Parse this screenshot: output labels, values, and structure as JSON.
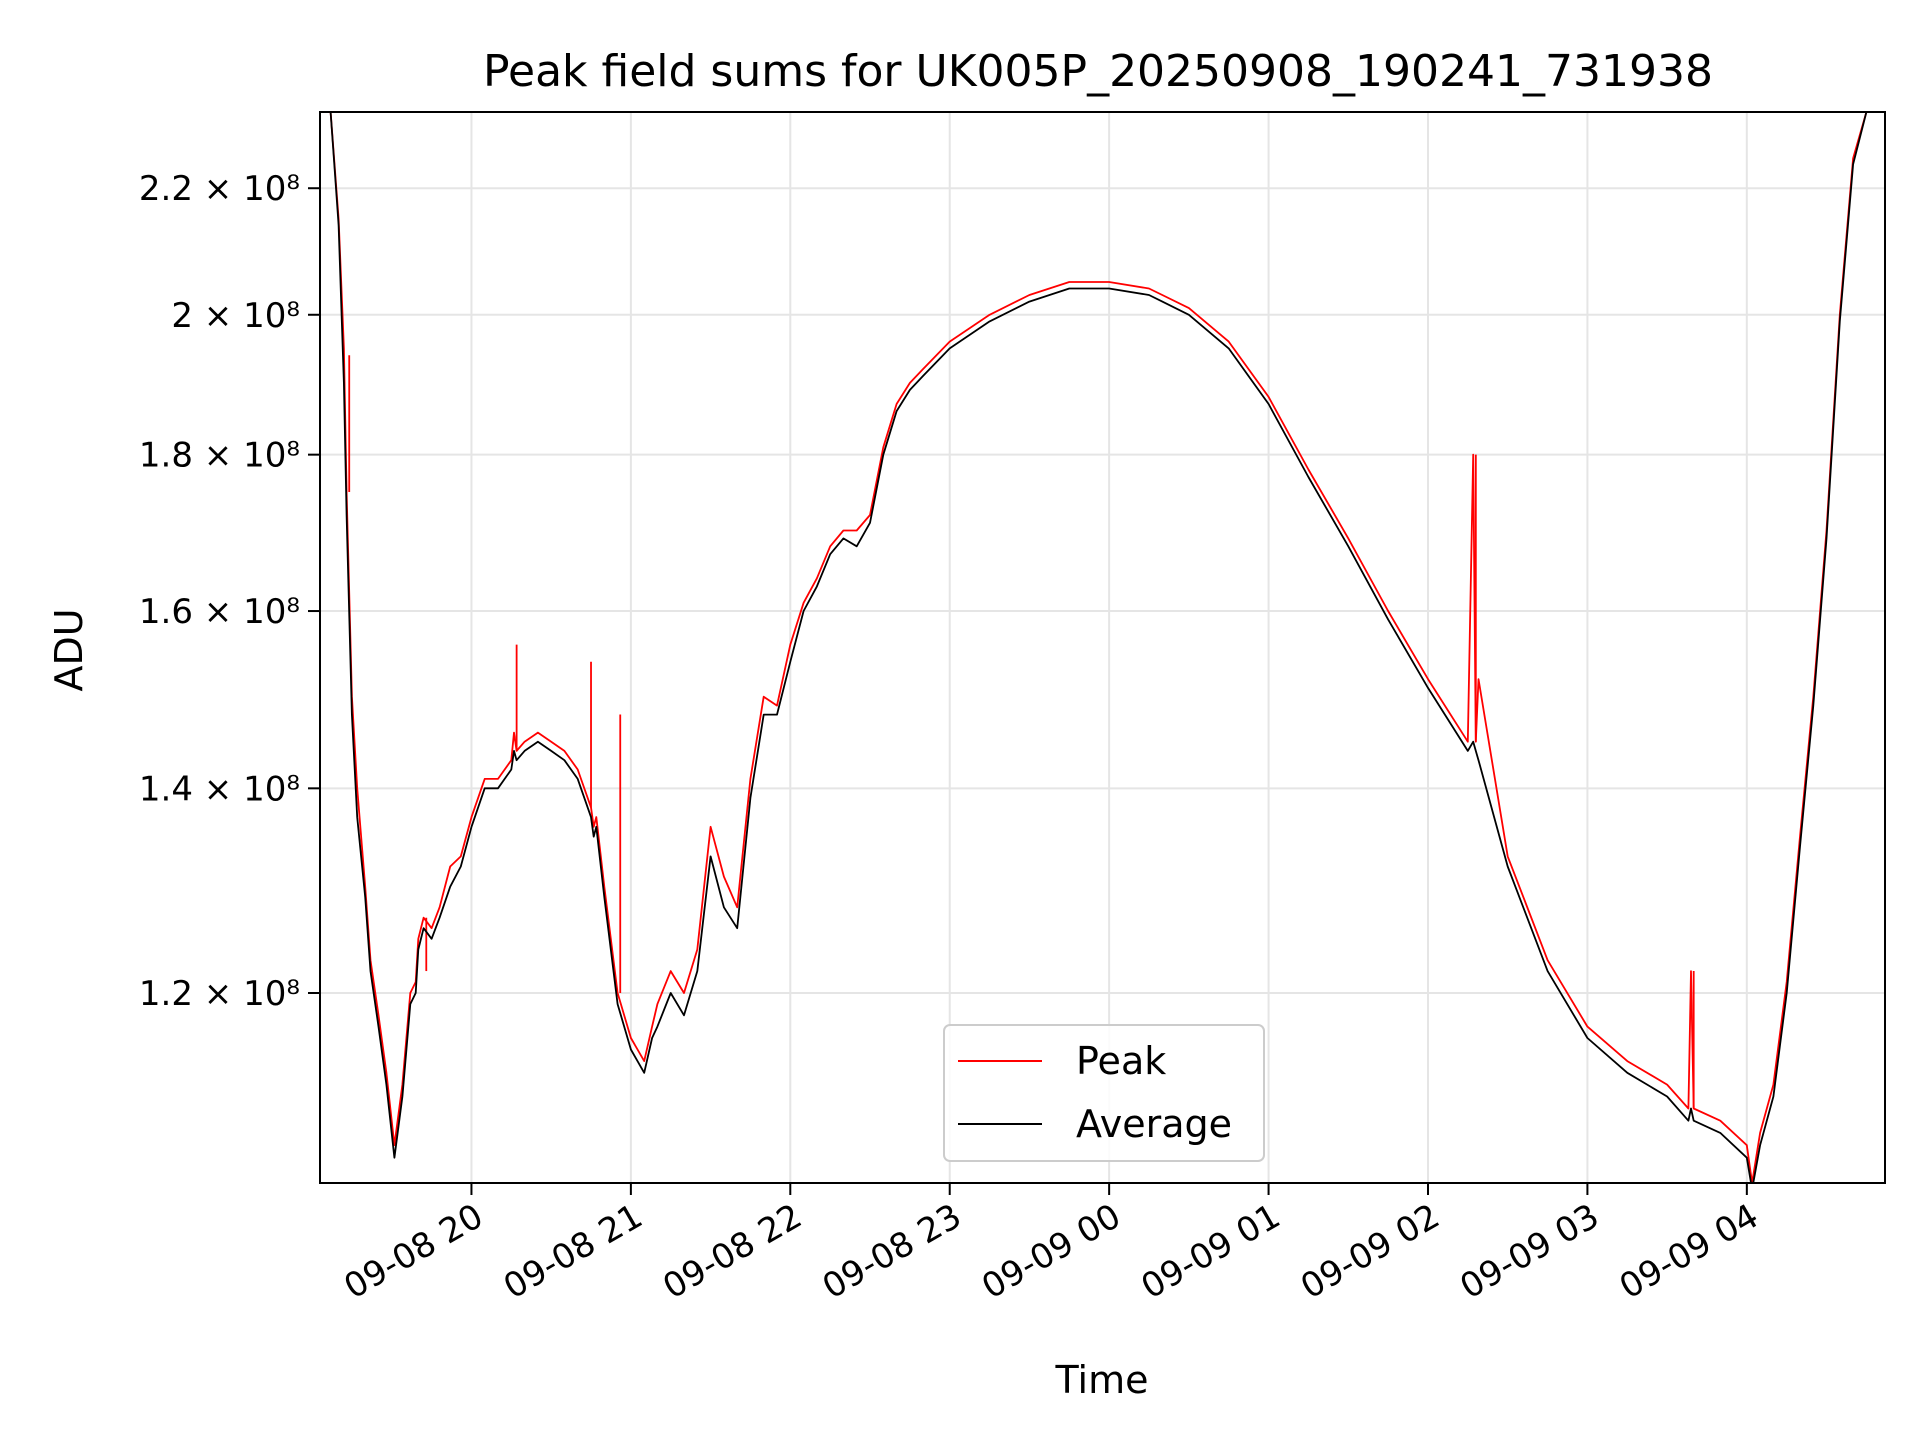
{
  "chart_data": {
    "type": "line",
    "title": "Peak field sums for UK005P_20250908_190241_731938",
    "xlabel": "Time",
    "ylabel": "ADU",
    "yscale": "log",
    "grid": true,
    "legend_position": "bottom-center",
    "xlim": [
      "2025-09-08 19:03",
      "2025-09-09 04:52"
    ],
    "ylim": [
      104000000,
      233000000
    ],
    "x_ticks": [
      "09-08 20",
      "09-08 21",
      "09-08 22",
      "09-08 23",
      "09-09 00",
      "09-09 01",
      "09-09 02",
      "09-09 03",
      "09-09 04"
    ],
    "x_tick_times": [
      "2025-09-08 20:00",
      "2025-09-08 21:00",
      "2025-09-08 22:00",
      "2025-09-08 23:00",
      "2025-09-09 00:00",
      "2025-09-09 01:00",
      "2025-09-09 02:00",
      "2025-09-09 03:00",
      "2025-09-09 04:00"
    ],
    "y_ticks": [
      {
        "value": 120000000,
        "label": "1.2 × 10⁸"
      },
      {
        "value": 140000000,
        "label": "1.4 × 10⁸"
      },
      {
        "value": 160000000,
        "label": "1.6 × 10⁸"
      },
      {
        "value": 180000000,
        "label": "1.8 × 10⁸"
      },
      {
        "value": 200000000,
        "label": "2 × 10⁸"
      },
      {
        "value": 220000000,
        "label": "2.2 × 10⁸"
      }
    ],
    "series": [
      {
        "name": "Peak",
        "color": "#ff0000",
        "x": [
          "2025-09-08 19:04",
          "2025-09-08 19:07",
          "2025-09-08 19:10",
          "2025-09-08 19:12",
          "2025-09-08 19:13",
          "2025-09-08 19:15",
          "2025-09-08 19:17",
          "2025-09-08 19:20",
          "2025-09-08 19:22",
          "2025-09-08 19:25",
          "2025-09-08 19:28",
          "2025-09-08 19:31",
          "2025-09-08 19:34",
          "2025-09-08 19:37",
          "2025-09-08 19:39",
          "2025-09-08 19:40",
          "2025-09-08 19:42",
          "2025-09-08 19:45",
          "2025-09-08 19:48",
          "2025-09-08 19:52",
          "2025-09-08 19:56",
          "2025-09-08 20:00",
          "2025-09-08 20:05",
          "2025-09-08 20:10",
          "2025-09-08 20:15",
          "2025-09-08 20:16",
          "2025-09-08 20:17",
          "2025-09-08 20:20",
          "2025-09-08 20:25",
          "2025-09-08 20:30",
          "2025-09-08 20:35",
          "2025-09-08 20:40",
          "2025-09-08 20:45",
          "2025-09-08 20:46",
          "2025-09-08 20:47",
          "2025-09-08 20:50",
          "2025-09-08 20:55",
          "2025-09-08 21:00",
          "2025-09-08 21:05",
          "2025-09-08 21:08",
          "2025-09-08 21:10",
          "2025-09-08 21:15",
          "2025-09-08 21:20",
          "2025-09-08 21:25",
          "2025-09-08 21:30",
          "2025-09-08 21:35",
          "2025-09-08 21:40",
          "2025-09-08 21:45",
          "2025-09-08 21:50",
          "2025-09-08 21:55",
          "2025-09-08 22:00",
          "2025-09-08 22:05",
          "2025-09-08 22:10",
          "2025-09-08 22:15",
          "2025-09-08 22:20",
          "2025-09-08 22:25",
          "2025-09-08 22:30",
          "2025-09-08 22:35",
          "2025-09-08 22:40",
          "2025-09-08 22:45",
          "2025-09-08 22:50",
          "2025-09-08 23:00",
          "2025-09-08 23:15",
          "2025-09-08 23:30",
          "2025-09-08 23:45",
          "2025-09-09 00:00",
          "2025-09-09 00:15",
          "2025-09-09 00:20",
          "2025-09-09 00:30",
          "2025-09-09 00:45",
          "2025-09-09 01:00",
          "2025-09-09 01:15",
          "2025-09-09 01:30",
          "2025-09-09 01:45",
          "2025-09-09 02:00",
          "2025-09-09 02:15",
          "2025-09-09 02:17",
          "2025-09-09 02:18",
          "2025-09-09 02:19",
          "2025-09-09 02:30",
          "2025-09-09 02:45",
          "2025-09-09 03:00",
          "2025-09-09 03:15",
          "2025-09-09 03:30",
          "2025-09-09 03:38",
          "2025-09-09 03:39",
          "2025-09-09 03:40",
          "2025-09-09 03:50",
          "2025-09-09 04:00",
          "2025-09-09 04:02",
          "2025-09-09 04:05",
          "2025-09-09 04:10",
          "2025-09-09 04:15",
          "2025-09-09 04:20",
          "2025-09-09 04:25",
          "2025-09-09 04:30",
          "2025-09-09 04:35",
          "2025-09-09 04:40",
          "2025-09-09 04:45",
          "2025-09-09 04:51"
        ],
        "y": [
          233000000,
          233000000,
          215000000,
          195000000,
          175000000,
          150000000,
          140000000,
          130000000,
          123000000,
          118000000,
          113000000,
          107000000,
          112000000,
          120000000,
          121000000,
          125000000,
          127000000,
          126000000,
          128000000,
          132000000,
          133000000,
          137000000,
          141000000,
          141000000,
          143000000,
          146000000,
          144000000,
          145000000,
          146000000,
          145000000,
          144000000,
          142000000,
          138000000,
          136000000,
          137000000,
          130000000,
          120000000,
          116000000,
          114000000,
          117000000,
          119000000,
          122000000,
          120000000,
          124000000,
          136000000,
          131000000,
          128000000,
          141000000,
          150000000,
          149000000,
          156000000,
          161000000,
          164000000,
          168000000,
          170000000,
          170000000,
          172000000,
          181000000,
          187000000,
          190000000,
          192000000,
          196000000,
          200000000,
          203000000,
          205000000,
          205000000,
          204000000,
          203000000,
          201000000,
          196000000,
          188000000,
          178000000,
          169000000,
          160000000,
          152000000,
          145000000,
          180000000,
          145000000,
          152000000,
          133000000,
          123000000,
          117000000,
          114000000,
          112000000,
          110000000,
          122000000,
          110000000,
          109000000,
          107000000,
          104000000,
          108000000,
          112000000,
          121000000,
          135000000,
          150000000,
          170000000,
          200000000,
          225000000,
          233000000,
          233000000
        ],
        "spikes": [
          {
            "x": "2025-09-08 19:14",
            "y": 194000000
          },
          {
            "x": "2025-09-08 19:43",
            "y": 122000000
          },
          {
            "x": "2025-09-08 20:17",
            "y": 156000000
          },
          {
            "x": "2025-09-08 20:45",
            "y": 154000000
          },
          {
            "x": "2025-09-08 20:56",
            "y": 148000000
          },
          {
            "x": "2025-09-09 02:18",
            "y": 180000000
          },
          {
            "x": "2025-09-09 02:19",
            "y": 152000000
          },
          {
            "x": "2025-09-09 03:40",
            "y": 122000000
          }
        ]
      },
      {
        "name": "Average",
        "color": "#000000",
        "x": [
          "2025-09-08 19:04",
          "2025-09-08 19:07",
          "2025-09-08 19:10",
          "2025-09-08 19:12",
          "2025-09-08 19:13",
          "2025-09-08 19:15",
          "2025-09-08 19:17",
          "2025-09-08 19:20",
          "2025-09-08 19:22",
          "2025-09-08 19:25",
          "2025-09-08 19:28",
          "2025-09-08 19:31",
          "2025-09-08 19:34",
          "2025-09-08 19:37",
          "2025-09-08 19:39",
          "2025-09-08 19:40",
          "2025-09-08 19:42",
          "2025-09-08 19:45",
          "2025-09-08 19:48",
          "2025-09-08 19:52",
          "2025-09-08 19:56",
          "2025-09-08 20:00",
          "2025-09-08 20:05",
          "2025-09-08 20:10",
          "2025-09-08 20:15",
          "2025-09-08 20:16",
          "2025-09-08 20:17",
          "2025-09-08 20:20",
          "2025-09-08 20:25",
          "2025-09-08 20:30",
          "2025-09-08 20:35",
          "2025-09-08 20:40",
          "2025-09-08 20:45",
          "2025-09-08 20:46",
          "2025-09-08 20:47",
          "2025-09-08 20:50",
          "2025-09-08 20:55",
          "2025-09-08 21:00",
          "2025-09-08 21:05",
          "2025-09-08 21:08",
          "2025-09-08 21:10",
          "2025-09-08 21:15",
          "2025-09-08 21:20",
          "2025-09-08 21:25",
          "2025-09-08 21:30",
          "2025-09-08 21:35",
          "2025-09-08 21:40",
          "2025-09-08 21:45",
          "2025-09-08 21:50",
          "2025-09-08 21:55",
          "2025-09-08 22:00",
          "2025-09-08 22:05",
          "2025-09-08 22:10",
          "2025-09-08 22:15",
          "2025-09-08 22:20",
          "2025-09-08 22:25",
          "2025-09-08 22:30",
          "2025-09-08 22:35",
          "2025-09-08 22:40",
          "2025-09-08 22:45",
          "2025-09-08 22:50",
          "2025-09-08 23:00",
          "2025-09-08 23:15",
          "2025-09-08 23:30",
          "2025-09-08 23:45",
          "2025-09-09 00:00",
          "2025-09-09 00:15",
          "2025-09-09 00:20",
          "2025-09-09 00:30",
          "2025-09-09 00:45",
          "2025-09-09 01:00",
          "2025-09-09 01:15",
          "2025-09-09 01:30",
          "2025-09-09 01:45",
          "2025-09-09 02:00",
          "2025-09-09 02:15",
          "2025-09-09 02:17",
          "2025-09-09 02:18",
          "2025-09-09 02:19",
          "2025-09-09 02:30",
          "2025-09-09 02:45",
          "2025-09-09 03:00",
          "2025-09-09 03:15",
          "2025-09-09 03:30",
          "2025-09-09 03:38",
          "2025-09-09 03:39",
          "2025-09-09 03:40",
          "2025-09-09 03:50",
          "2025-09-09 04:00",
          "2025-09-09 04:02",
          "2025-09-09 04:05",
          "2025-09-09 04:10",
          "2025-09-09 04:15",
          "2025-09-09 04:20",
          "2025-09-09 04:25",
          "2025-09-09 04:30",
          "2025-09-09 04:35",
          "2025-09-09 04:40",
          "2025-09-09 04:45",
          "2025-09-09 04:51"
        ],
        "y": [
          233000000,
          233000000,
          214000000,
          190000000,
          172000000,
          148000000,
          137000000,
          129000000,
          122000000,
          117000000,
          112000000,
          106000000,
          111000000,
          119000000,
          120000000,
          124000000,
          126000000,
          125000000,
          127000000,
          130000000,
          132000000,
          136000000,
          140000000,
          140000000,
          142000000,
          144000000,
          143000000,
          144000000,
          145000000,
          144000000,
          143000000,
          141000000,
          137000000,
          135000000,
          136000000,
          129000000,
          119000000,
          115000000,
          113000000,
          116000000,
          117000000,
          120000000,
          118000000,
          122000000,
          133000000,
          128000000,
          126000000,
          139000000,
          148000000,
          148000000,
          154000000,
          160000000,
          163000000,
          167000000,
          169000000,
          168000000,
          171000000,
          180000000,
          186000000,
          189000000,
          191000000,
          195000000,
          199000000,
          202000000,
          204000000,
          204000000,
          203000000,
          202000000,
          200000000,
          195000000,
          187000000,
          177000000,
          168000000,
          159000000,
          151000000,
          144000000,
          145000000,
          144000000,
          143000000,
          132000000,
          122000000,
          116000000,
          113000000,
          111000000,
          109000000,
          110000000,
          109000000,
          108000000,
          106000000,
          103500000,
          107000000,
          111000000,
          120000000,
          134000000,
          149000000,
          169000000,
          199000000,
          224000000,
          233000000,
          233000000
        ]
      }
    ]
  }
}
